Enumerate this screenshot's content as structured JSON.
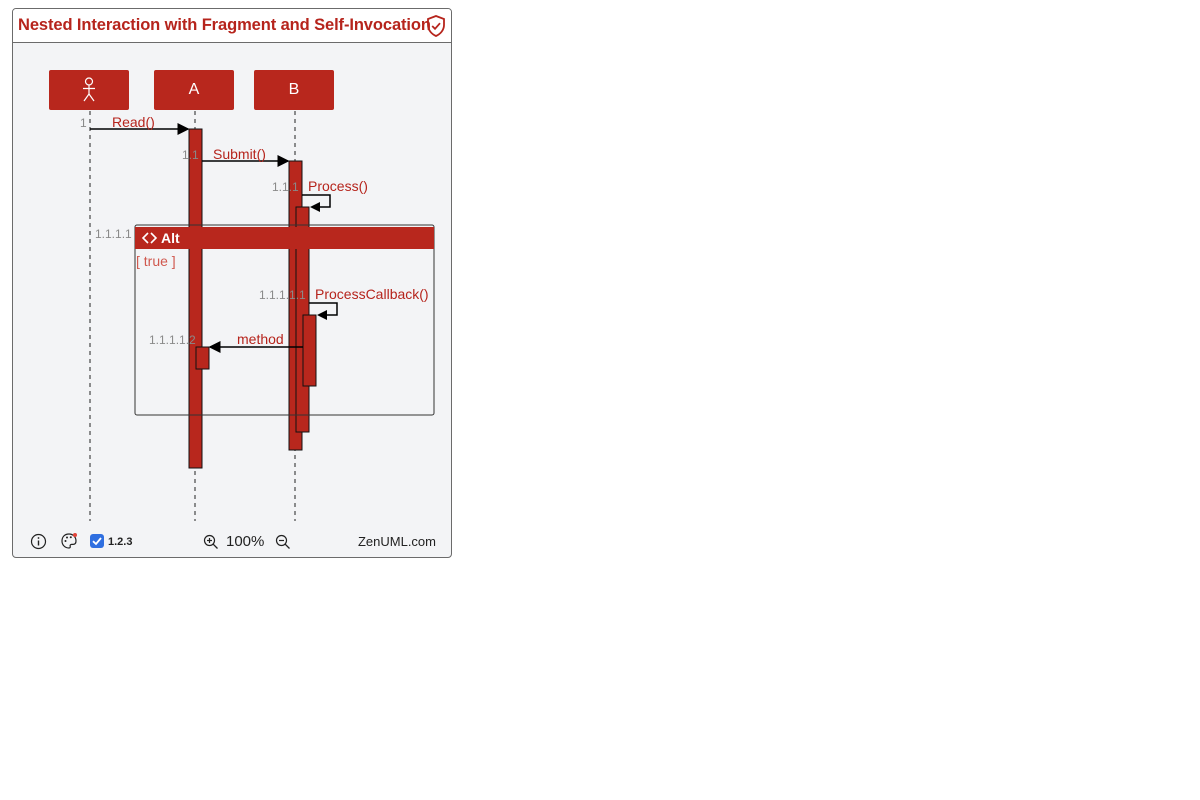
{
  "title": "Nested Interaction with Fragment and Self-Invocation",
  "participants": [
    {
      "name": "",
      "icon": "actor-icon"
    },
    {
      "name": "A"
    },
    {
      "name": "B"
    }
  ],
  "messages": [
    {
      "number": "1",
      "label": "Read()"
    },
    {
      "number": "1.1",
      "label": "Submit()"
    },
    {
      "number": "1.1.1",
      "label": "Process()"
    },
    {
      "number": "1.1.1.1.1",
      "label": "ProcessCallback()"
    },
    {
      "number": "1.1.1.1.2",
      "label": "method"
    }
  ],
  "fragment": {
    "number": "1.1.1.1",
    "title": "Alt",
    "condition": "[ true ]"
  },
  "footer": {
    "version": "1.2.3",
    "zoom": "100%",
    "brand": "ZenUML.com"
  },
  "colors": {
    "accent": "#b8271d",
    "checkbox": "#2f6fe0"
  }
}
